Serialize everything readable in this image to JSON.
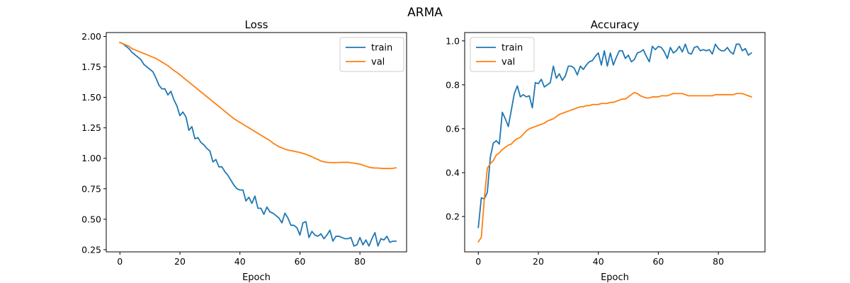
{
  "figure": {
    "suptitle": "ARMA"
  },
  "chart_data": [
    {
      "type": "line",
      "title": "Loss",
      "xlabel": "Epoch",
      "ylabel": "",
      "xlim": [
        -4.55,
        95.55
      ],
      "ylim": [
        0.232,
        2.032
      ],
      "xticks": [
        0,
        20,
        40,
        60,
        80
      ],
      "xtick_labels": [
        "0",
        "20",
        "40",
        "60",
        "80"
      ],
      "yticks": [
        0.25,
        0.5,
        0.75,
        1.0,
        1.25,
        1.5,
        1.75,
        2.0
      ],
      "ytick_labels": [
        "0.25",
        "0.50",
        "0.75",
        "1.00",
        "1.25",
        "1.50",
        "1.75",
        "2.00"
      ],
      "grid": false,
      "legend_position": "top-right",
      "series": [
        {
          "name": "train",
          "color": "#1f77b4",
          "values": [
            1.95,
            1.94,
            1.92,
            1.9,
            1.87,
            1.85,
            1.83,
            1.81,
            1.77,
            1.75,
            1.73,
            1.71,
            1.66,
            1.6,
            1.57,
            1.57,
            1.52,
            1.55,
            1.48,
            1.43,
            1.35,
            1.38,
            1.34,
            1.23,
            1.26,
            1.16,
            1.17,
            1.13,
            1.11,
            1.08,
            1.06,
            0.97,
            0.99,
            0.93,
            0.93,
            0.89,
            0.86,
            0.82,
            0.78,
            0.75,
            0.74,
            0.74,
            0.65,
            0.68,
            0.63,
            0.69,
            0.59,
            0.59,
            0.54,
            0.6,
            0.56,
            0.55,
            0.53,
            0.51,
            0.47,
            0.55,
            0.51,
            0.45,
            0.45,
            0.43,
            0.37,
            0.47,
            0.48,
            0.35,
            0.4,
            0.37,
            0.36,
            0.38,
            0.34,
            0.37,
            0.41,
            0.32,
            0.36,
            0.36,
            0.35,
            0.34,
            0.34,
            0.35,
            0.28,
            0.29,
            0.35,
            0.29,
            0.33,
            0.28,
            0.34,
            0.39,
            0.28,
            0.34,
            0.33,
            0.36,
            0.31,
            0.32,
            0.32
          ]
        },
        {
          "name": "val",
          "color": "#ff7f0e",
          "values": [
            1.95,
            1.94,
            1.93,
            1.92,
            1.9,
            1.89,
            1.88,
            1.87,
            1.86,
            1.85,
            1.84,
            1.83,
            1.82,
            1.805,
            1.79,
            1.775,
            1.76,
            1.74,
            1.72,
            1.705,
            1.685,
            1.665,
            1.645,
            1.625,
            1.605,
            1.585,
            1.565,
            1.545,
            1.525,
            1.505,
            1.485,
            1.465,
            1.445,
            1.425,
            1.405,
            1.385,
            1.365,
            1.345,
            1.325,
            1.31,
            1.295,
            1.28,
            1.265,
            1.25,
            1.235,
            1.22,
            1.205,
            1.19,
            1.175,
            1.16,
            1.145,
            1.125,
            1.11,
            1.095,
            1.085,
            1.075,
            1.068,
            1.063,
            1.058,
            1.053,
            1.048,
            1.04,
            1.033,
            1.023,
            1.013,
            1.0,
            0.99,
            0.978,
            0.971,
            0.967,
            0.965,
            0.965,
            0.965,
            0.966,
            0.967,
            0.967,
            0.967,
            0.963,
            0.96,
            0.956,
            0.952,
            0.944,
            0.935,
            0.927,
            0.922,
            0.92,
            0.92,
            0.918,
            0.916,
            0.916,
            0.916,
            0.918,
            0.922
          ]
        }
      ]
    },
    {
      "type": "line",
      "title": "Accuracy",
      "xlabel": "Epoch",
      "ylabel": "",
      "xlim": [
        -4.55,
        95.55
      ],
      "ylim": [
        0.039,
        1.038
      ],
      "xticks": [
        0,
        20,
        40,
        60,
        80
      ],
      "xtick_labels": [
        "0",
        "20",
        "40",
        "60",
        "80"
      ],
      "yticks": [
        0.2,
        0.4,
        0.6,
        0.8,
        1.0
      ],
      "ytick_labels": [
        "0.2",
        "0.4",
        "0.6",
        "0.8",
        "1.0"
      ],
      "grid": false,
      "legend_position": "top-left",
      "series": [
        {
          "name": "train",
          "color": "#1f77b4",
          "values": [
            0.15,
            0.285,
            0.28,
            0.31,
            0.47,
            0.535,
            0.545,
            0.53,
            0.675,
            0.645,
            0.61,
            0.685,
            0.76,
            0.795,
            0.745,
            0.755,
            0.745,
            0.75,
            0.695,
            0.81,
            0.805,
            0.825,
            0.79,
            0.8,
            0.81,
            0.885,
            0.83,
            0.85,
            0.82,
            0.84,
            0.885,
            0.885,
            0.875,
            0.845,
            0.885,
            0.87,
            0.89,
            0.905,
            0.91,
            0.93,
            0.945,
            0.89,
            0.955,
            0.885,
            0.945,
            0.89,
            0.925,
            0.955,
            0.955,
            0.92,
            0.935,
            0.905,
            0.915,
            0.945,
            0.95,
            0.96,
            0.93,
            0.905,
            0.975,
            0.96,
            0.975,
            0.97,
            0.95,
            0.92,
            0.97,
            0.945,
            0.955,
            0.975,
            0.95,
            0.985,
            0.945,
            0.94,
            0.97,
            0.975,
            0.955,
            0.96,
            0.955,
            0.96,
            0.94,
            0.985,
            0.965,
            0.955,
            0.955,
            0.97,
            0.95,
            0.94,
            0.985,
            0.985,
            0.955,
            0.965,
            0.935,
            0.945
          ]
        },
        {
          "name": "val",
          "color": "#ff7f0e",
          "values": [
            0.085,
            0.105,
            0.28,
            0.42,
            0.44,
            0.455,
            0.48,
            0.49,
            0.505,
            0.515,
            0.525,
            0.53,
            0.545,
            0.555,
            0.56,
            0.575,
            0.59,
            0.6,
            0.605,
            0.61,
            0.615,
            0.62,
            0.625,
            0.635,
            0.64,
            0.645,
            0.655,
            0.665,
            0.67,
            0.675,
            0.68,
            0.685,
            0.69,
            0.695,
            0.7,
            0.7,
            0.705,
            0.705,
            0.71,
            0.71,
            0.71,
            0.715,
            0.715,
            0.715,
            0.72,
            0.72,
            0.725,
            0.73,
            0.735,
            0.735,
            0.745,
            0.755,
            0.765,
            0.76,
            0.75,
            0.745,
            0.74,
            0.74,
            0.745,
            0.745,
            0.745,
            0.75,
            0.75,
            0.75,
            0.755,
            0.76,
            0.76,
            0.76,
            0.76,
            0.755,
            0.75,
            0.75,
            0.75,
            0.75,
            0.75,
            0.75,
            0.75,
            0.75,
            0.75,
            0.755,
            0.755,
            0.755,
            0.755,
            0.755,
            0.755,
            0.755,
            0.76,
            0.76,
            0.76,
            0.755,
            0.75,
            0.745
          ]
        }
      ]
    }
  ]
}
